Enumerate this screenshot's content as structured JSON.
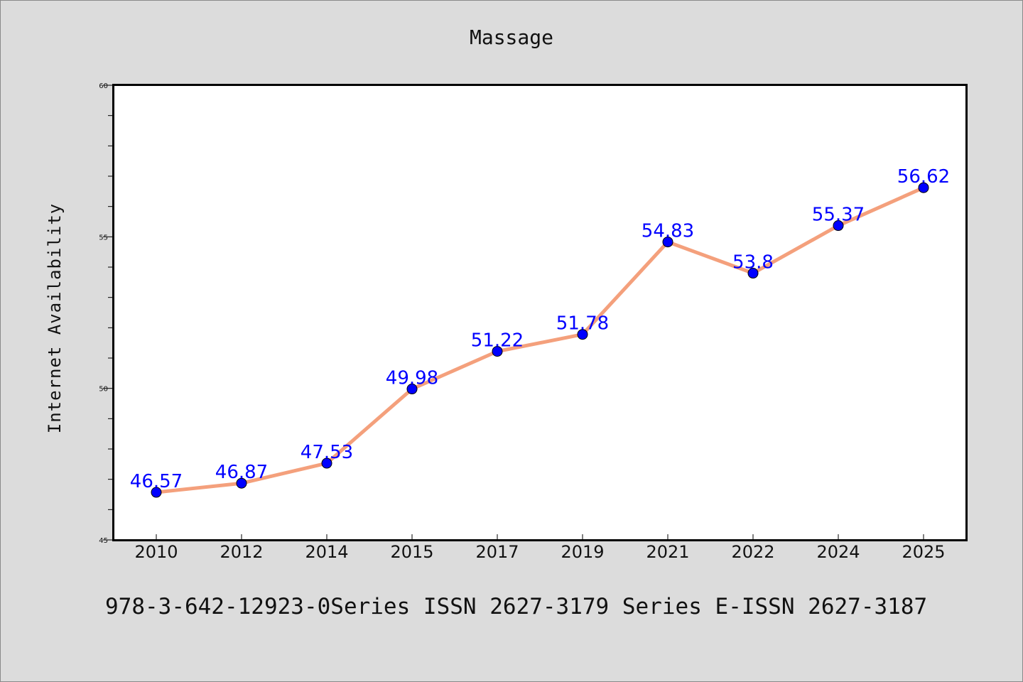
{
  "chart_data": {
    "type": "line",
    "title": "Massage",
    "xlabel": "",
    "ylabel": "Internet Availability",
    "categories": [
      "2010",
      "2012",
      "2014",
      "2015",
      "2017",
      "2019",
      "2021",
      "2022",
      "2024",
      "2025"
    ],
    "series": [
      {
        "values": [
          46.57,
          46.87,
          47.53,
          49.98,
          51.22,
          51.78,
          54.83,
          53.8,
          55.37,
          56.62
        ],
        "labels": [
          "46.57",
          "46.87",
          "47.53",
          "49.98",
          "51.22",
          "51.78",
          "54.83",
          "53.8",
          "55.37",
          "56.62"
        ]
      }
    ],
    "ylim": [
      45,
      60
    ],
    "yticks": [
      "45",
      "50",
      "55",
      "60"
    ],
    "grid": false,
    "legend": "none",
    "line_color": "#f4a07c",
    "marker_color": "#0000ff",
    "label_color": "#0000ff"
  },
  "footer": {
    "text": "978-3-642-12923-0Series ISSN 2627-3179 Series E-ISSN 2627-3187"
  }
}
